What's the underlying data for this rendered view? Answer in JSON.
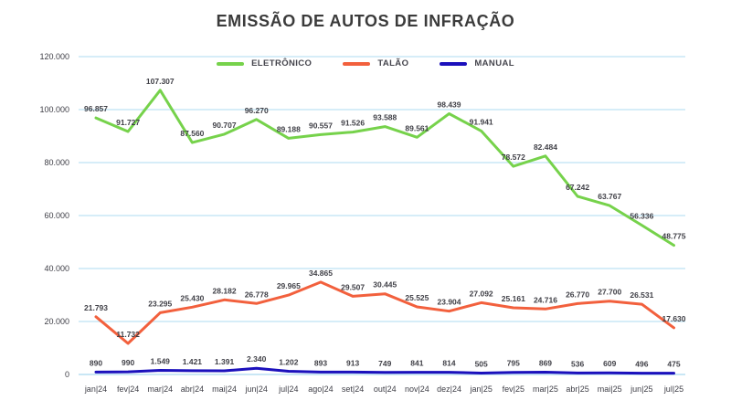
{
  "page": {
    "background": "#ffffff"
  },
  "chart_data": {
    "type": "line",
    "title": "EMISSÃO DE AUTOS DE INFRAÇÃO",
    "xlabel": "",
    "ylabel": "",
    "legend_position": "top-center",
    "grid": true,
    "categories": [
      "jan|24",
      "fev|24",
      "mar|24",
      "abr|24",
      "mai|24",
      "jun|24",
      "jul|24",
      "ago|24",
      "set|24",
      "out|24",
      "nov|24",
      "dez|24",
      "jan|25",
      "fev|25",
      "mar|25",
      "abr|25",
      "mai|25",
      "jun|25",
      "jul|25"
    ],
    "series": [
      {
        "name": "ELETRÔNICO",
        "color": "#76d24b",
        "values": [
          96857,
          91727,
          107307,
          87560,
          90707,
          96270,
          89188,
          90557,
          91526,
          93588,
          89561,
          98439,
          91941,
          78572,
          82484,
          67242,
          63767,
          56336,
          48775
        ],
        "labels": [
          "96.857",
          "91.727",
          "107.307",
          "87.560",
          "90.707",
          "96.270",
          "89.188",
          "90.557",
          "91.526",
          "93.588",
          "89.561",
          "98.439",
          "91.941",
          "78.572",
          "82.484",
          "67.242",
          "63.767",
          "56.336",
          "48.775"
        ]
      },
      {
        "name": "TALÃO",
        "color": "#f2603d",
        "values": [
          21793,
          11732,
          23295,
          25430,
          28182,
          26778,
          29965,
          34865,
          29507,
          30445,
          25525,
          23904,
          27092,
          25161,
          24716,
          26770,
          27700,
          26531,
          17630
        ],
        "labels": [
          "21.793",
          "11.732",
          "23.295",
          "25.430",
          "28.182",
          "26.778",
          "29.965",
          "34.865",
          "29.507",
          "30.445",
          "25.525",
          "23.904",
          "27.092",
          "25.161",
          "24.716",
          "26.770",
          "27.700",
          "26.531",
          "17.630"
        ]
      },
      {
        "name": "MANUAL",
        "color": "#1b10bc",
        "values": [
          890,
          990,
          1549,
          1421,
          1391,
          2340,
          1202,
          893,
          913,
          749,
          841,
          814,
          505,
          795,
          869,
          536,
          609,
          496,
          475
        ],
        "labels": [
          "890",
          "990",
          "1.549",
          "1.421",
          "1.391",
          "2.340",
          "1.202",
          "893",
          "913",
          "749",
          "841",
          "814",
          "505",
          "795",
          "869",
          "536",
          "609",
          "496",
          "475"
        ]
      }
    ],
    "y_axis": {
      "min": 0,
      "max": 120000,
      "step": 20000,
      "tick_labels": [
        "0",
        "20.000",
        "40.000",
        "60.000",
        "80.000",
        "100.000",
        "120.000"
      ]
    },
    "colors": {
      "gridline": "#c9e7f5",
      "axis_text": "#3e3e46",
      "title_text": "#3b3b3b"
    }
  }
}
